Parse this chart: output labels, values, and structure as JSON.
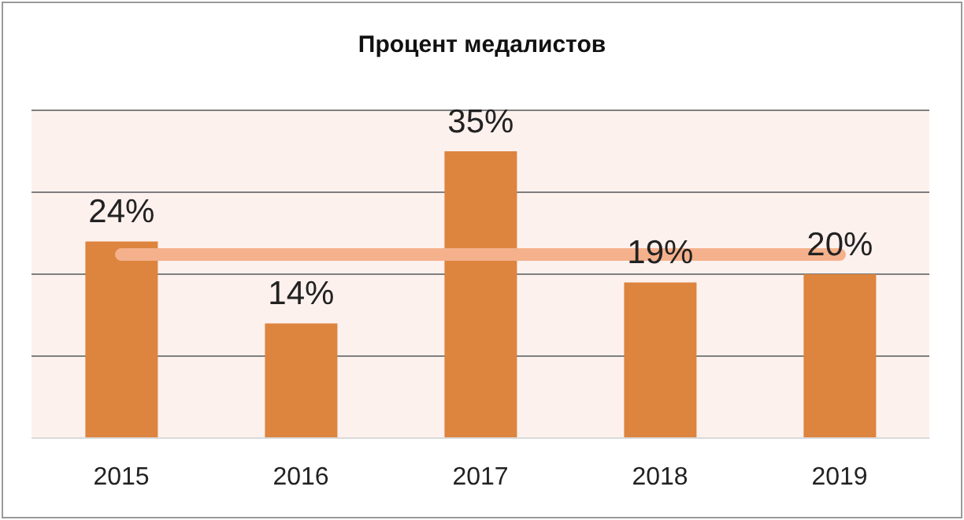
{
  "chart_data": {
    "type": "bar",
    "title": "Процент медалистов",
    "categories": [
      "2015",
      "2016",
      "2017",
      "2018",
      "2019"
    ],
    "series": [
      {
        "color": "#dd843e",
        "values": [
          24,
          14,
          35,
          19,
          20
        ],
        "value_labels": [
          "24%",
          "14%",
          "35%",
          "19%",
          "20%"
        ]
      },
      {
        "type": "line",
        "color": "#f4b18c",
        "values": [
          22.4,
          22.4,
          22.4,
          22.4,
          22.4
        ]
      }
    ],
    "ylim": [
      0,
      40
    ],
    "yticks": [
      {
        "value": 0,
        "label": null
      },
      {
        "value": 10,
        "label": null
      },
      {
        "value": 20,
        "label": null
      },
      {
        "value": 30,
        "label": null
      },
      {
        "value": 40,
        "label": null
      }
    ],
    "grid": "y",
    "tick_labels": "x"
  }
}
